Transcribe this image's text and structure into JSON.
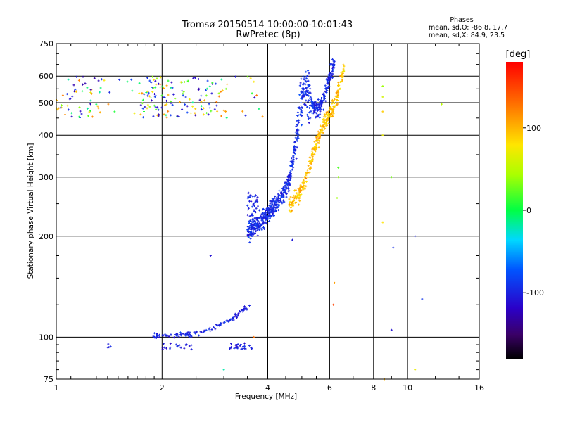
{
  "chart_data": {
    "type": "scatter",
    "title": "Tromsø 20150514 10:00:00-10:01:43",
    "subtitle": "RwPretec (8p)",
    "xlabel": "Frequency [MHz]",
    "ylabel": "Stationary phase Virtual Height [km]",
    "x_scale": "log",
    "y_scale": "log",
    "xlim": [
      1,
      16
    ],
    "ylim": [
      75,
      750
    ],
    "x_ticks": [
      1,
      2,
      4,
      6,
      8,
      10,
      16
    ],
    "x_tick_labels": [
      "1",
      "2",
      "4",
      "6",
      "8",
      "10",
      "16"
    ],
    "y_ticks": [
      75,
      100,
      200,
      300,
      400,
      500,
      600,
      750
    ],
    "y_tick_labels": [
      "75",
      "100",
      "200",
      "300",
      "400",
      "500",
      "600",
      "750"
    ],
    "grid": true,
    "stats": {
      "header": "Phases",
      "o_line": "mean, sd,O: -86.8, 17.7",
      "x_line": "mean, sd,X:  84.9, 23.5"
    },
    "colorbar": {
      "label": "[deg]",
      "range": [
        -180,
        180
      ],
      "tick_values": [
        100,
        0,
        -100
      ],
      "tick_labels": [
        "100",
        "0",
        "-100"
      ]
    },
    "series": [
      {
        "name": "spread F scatter (mixed phase)",
        "x_range": [
          1.0,
          3.9
        ],
        "y_range": [
          450,
          600
        ],
        "phase": "mixed",
        "count": 220
      },
      {
        "name": "E-layer trace",
        "x_range": [
          1.88,
          3.55
        ],
        "y_range": [
          98,
          125
        ],
        "phase": -100,
        "count": 120
      },
      {
        "name": "Low echoes ~93 km",
        "x_range": [
          1.9,
          3.6
        ],
        "y_range": [
          92,
          96
        ],
        "phase": -105,
        "count": 50
      },
      {
        "name": "F-layer O-mode trace",
        "x_range": [
          3.5,
          6.2
        ],
        "y_range": [
          195,
          650
        ],
        "phase": -95,
        "count": 700
      },
      {
        "name": "F-layer X-mode trace",
        "x_range": [
          4.6,
          6.6
        ],
        "y_range": [
          240,
          650
        ],
        "phase": 95,
        "count": 300
      },
      {
        "name": "Sporadic echoes",
        "x_range": [
          1.3,
          12.5
        ],
        "y_range": [
          80,
          570
        ],
        "phase": "mixed",
        "count": 45
      }
    ]
  }
}
